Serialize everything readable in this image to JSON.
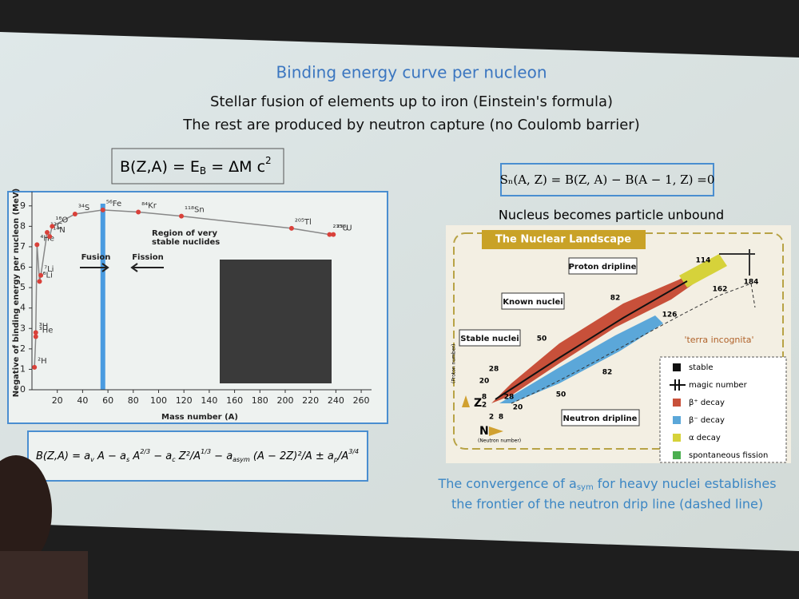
{
  "header": {
    "title": "Binding energy curve per nucleon",
    "line1": "Stellar fusion of elements up to iron (Einstein's formula)",
    "line2": "The rest are produced by neutron capture (no Coulomb barrier)"
  },
  "mass_energy": [
    "B(Z,A) = E",
    "B",
    " = ΔM c",
    "2"
  ],
  "semi_empirical": [
    "B(Z,A) = a",
    "v",
    " A − a",
    "s",
    " A",
    "2/3",
    " − a",
    "c",
    " Z²/A",
    "1/3",
    " − a",
    "asym",
    " (A − 2Z)²/A ± a",
    "p",
    "/A",
    "3/4"
  ],
  "separation": "Sₙ(A, Z) = B(Z, A) − B(A − 1, Z) =0",
  "separation_note": "Nucleus becomes particle unbound",
  "chart_data": {
    "type": "line",
    "y_label": "Negative of binding energy per nucleon (MeV)",
    "x_label": "Mass number (A)",
    "x": [
      2,
      3,
      3,
      4,
      6,
      7,
      12,
      14,
      16,
      34,
      56,
      84,
      118,
      205,
      235,
      238
    ],
    "series": [
      {
        "color": "#d9413a",
        "values": [
          1.1,
          2.6,
          2.8,
          7.1,
          5.3,
          5.6,
          7.7,
          7.5,
          8.0,
          8.6,
          8.8,
          8.7,
          8.5,
          7.9,
          7.6,
          7.6
        ]
      }
    ],
    "point_labels": [
      "²H",
      "³He",
      "³H",
      "⁴He",
      "⁶Li",
      "⁷Li",
      "¹²C",
      "¹⁴N",
      "¹⁶O",
      "³⁴S",
      "⁵⁶Fe",
      "⁸⁴Kr",
      "¹¹⁸Sn",
      "²⁰⁵Tl",
      "²³⁵U",
      "²³⁸U"
    ],
    "xlim": [
      0,
      265
    ],
    "ylim": [
      0,
      9.5
    ],
    "xticks": [
      20,
      40,
      60,
      80,
      100,
      120,
      140,
      160,
      180,
      200,
      220,
      240,
      260
    ],
    "yticks": [
      0,
      1,
      2,
      3,
      4,
      5,
      6,
      7,
      8,
      9
    ],
    "highlight_x": 56,
    "annotations": [
      "Region of very",
      "stable nuclides",
      "Fusion",
      "Fission"
    ]
  },
  "landscape": {
    "title": "The Nuclear Landscape",
    "proton_dripline": "Proton dripline",
    "known": "Known nuclei",
    "stable": "Stable nuclei",
    "neutron_dripline": "Neutron dripline",
    "terra": "'terra incognita'",
    "z": "Z",
    "n": "N",
    "z_note": "(Proton number)",
    "n_note": "(Neutron number)",
    "magic": [
      "2",
      "8",
      "20",
      "28",
      "50",
      "82",
      "114",
      "2",
      "8",
      "20",
      "28",
      "50",
      "82",
      "126",
      "162",
      "184"
    ],
    "legend": [
      "stable",
      "magic number",
      "β⁺ decay",
      "β⁻ decay",
      "α decay",
      "spontaneous fission"
    ]
  },
  "caption": [
    "The convergence of a",
    "sym",
    " for  heavy nuclei establishes",
    "the frontier of the neutron drip line (dashed line)"
  ]
}
